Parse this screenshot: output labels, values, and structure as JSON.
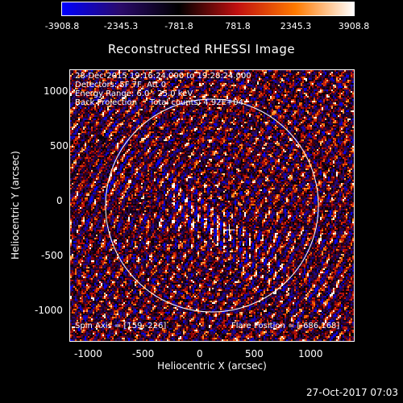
{
  "colorbar": {
    "ticks": [
      "-3908.8",
      "-2345.3",
      "-781.8",
      "781.8",
      "2345.3",
      "3908.8"
    ],
    "colors": [
      "#0000ff",
      "#2a0a6a",
      "#000000",
      "#c01010",
      "#ff7a00",
      "#ffffff"
    ]
  },
  "title": "Reconstructed RHESSI Image",
  "info": {
    "time_range": "28-Dec-2015 19:16:24.000 to 19:28:24.000",
    "detectors": "Detectors: 5F 7F, Att 0",
    "energy": "Energy Range: 6.0 - 25.0 keV",
    "method": "Back Projection     Total counts: 4.92E+04",
    "spin_axis": "Spin Axis = [159,-226]",
    "flare_position": "Flare Position = [-686,168]"
  },
  "axes": {
    "xlabel": "Heliocentric X (arcsec)",
    "ylabel": "Heliocentric Y (arcsec)",
    "xticks": [
      "-1000",
      "-500",
      "0",
      "500",
      "1000"
    ],
    "yticks": [
      "1000",
      "500",
      "0",
      "-500",
      "-1000"
    ],
    "xlim": [
      -1300,
      1300
    ],
    "ylim": [
      -1260,
      1260
    ]
  },
  "solar_disk": {
    "radius_arcsec": 975,
    "center": [
      0,
      0
    ]
  },
  "spin_axis_point": [
    159,
    -226
  ],
  "datestamp": "27-Oct-2017 07:03"
}
